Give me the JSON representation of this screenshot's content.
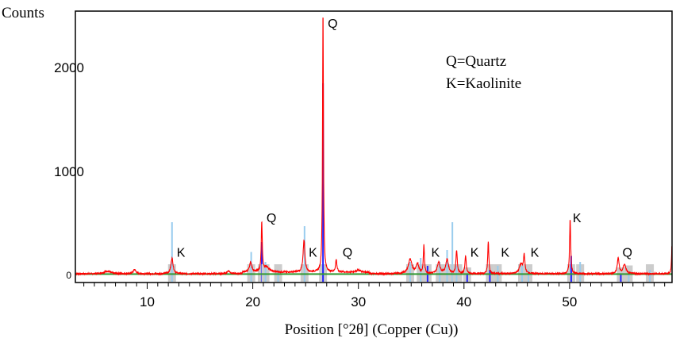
{
  "chart_data": {
    "type": "line",
    "title": "",
    "xlabel": "Position [°2θ] (Copper (Cu))",
    "ylabel": "Counts",
    "xlim": [
      3.2,
      59.7
    ],
    "ylim": [
      0,
      2540
    ],
    "x_ticks": [
      10,
      20,
      30,
      40,
      50
    ],
    "x_tick_labels": [
      "10",
      "20",
      "30",
      "40",
      "50"
    ],
    "y_ticks": [
      0,
      1000,
      2000
    ],
    "y_tick_labels": [
      "0",
      "1000",
      "2000"
    ],
    "grid": false,
    "legend": {
      "placement": "top-right",
      "entries": [
        "Q=Quartz",
        "K=Kaolinite"
      ]
    },
    "series": [
      {
        "name": "Observed pattern",
        "color": "#ff0000",
        "background_counts": 15,
        "peaks": [
          {
            "x": 6.2,
            "height": 25,
            "width": 0.8
          },
          {
            "x": 8.8,
            "height": 40,
            "width": 0.3
          },
          {
            "x": 12.35,
            "height": 150,
            "width": 0.25
          },
          {
            "x": 17.7,
            "height": 30,
            "width": 0.3
          },
          {
            "x": 19.8,
            "height": 95,
            "width": 0.25
          },
          {
            "x": 20.85,
            "height": 470,
            "width": 0.12
          },
          {
            "x": 21.3,
            "height": 50,
            "width": 0.6
          },
          {
            "x": 24.85,
            "height": 310,
            "width": 0.2
          },
          {
            "x": 26.65,
            "height": 2540,
            "width": 0.1
          },
          {
            "x": 27.9,
            "height": 120,
            "width": 0.15
          },
          {
            "x": 30.0,
            "height": 20,
            "width": 0.5
          },
          {
            "x": 34.9,
            "height": 140,
            "width": 0.4
          },
          {
            "x": 35.6,
            "height": 90,
            "width": 0.3
          },
          {
            "x": 36.2,
            "height": 270,
            "width": 0.12
          },
          {
            "x": 37.6,
            "height": 110,
            "width": 0.3
          },
          {
            "x": 38.4,
            "height": 135,
            "width": 0.3
          },
          {
            "x": 39.3,
            "height": 220,
            "width": 0.15
          },
          {
            "x": 40.15,
            "height": 165,
            "width": 0.15
          },
          {
            "x": 42.3,
            "height": 310,
            "width": 0.12
          },
          {
            "x": 45.4,
            "height": 90,
            "width": 0.4
          },
          {
            "x": 45.7,
            "height": 170,
            "width": 0.15
          },
          {
            "x": 50.05,
            "height": 530,
            "width": 0.12
          },
          {
            "x": 54.6,
            "height": 150,
            "width": 0.2
          },
          {
            "x": 55.2,
            "height": 90,
            "width": 0.3
          },
          {
            "x": 59.7,
            "height": 300,
            "width": 0.1
          }
        ]
      },
      {
        "name": "Background",
        "color": "#339933",
        "value": 12
      }
    ],
    "reference_sticks": [
      {
        "name": "Quartz",
        "color": "#2222ff",
        "positions": [
          20.85,
          26.65,
          36.55,
          39.45,
          40.3,
          42.45,
          45.8,
          50.15,
          54.85
        ],
        "heights": [
          20,
          100,
          8,
          8,
          4,
          6,
          4,
          13,
          4
        ]
      },
      {
        "name": "Kaolinite",
        "color": "#99ccee",
        "positions": [
          12.35,
          19.85,
          21.2,
          22.4,
          24.9,
          34.9,
          35.9,
          37.7,
          38.4,
          38.9,
          39.3,
          43.2,
          45.5,
          46.1,
          51.0,
          55.6,
          57.6
        ],
        "heights": [
          30,
          15,
          10,
          6,
          28,
          10,
          12,
          10,
          16,
          30,
          8,
          8,
          8,
          6,
          10,
          5,
          6
        ]
      }
    ],
    "annotations": [
      {
        "text": "Q",
        "x": 27.1,
        "y": 2380
      },
      {
        "text": "Q",
        "x": 21.3,
        "y": 510
      },
      {
        "text": "K",
        "x": 12.8,
        "y": 180
      },
      {
        "text": "K",
        "x": 25.3,
        "y": 180
      },
      {
        "text": "Q",
        "x": 28.5,
        "y": 180
      },
      {
        "text": "K",
        "x": 36.9,
        "y": 180
      },
      {
        "text": "K",
        "x": 40.6,
        "y": 180
      },
      {
        "text": "K",
        "x": 43.5,
        "y": 180
      },
      {
        "text": "K",
        "x": 46.3,
        "y": 180
      },
      {
        "text": "K",
        "x": 50.3,
        "y": 510
      },
      {
        "text": "Q",
        "x": 55.0,
        "y": 180
      }
    ]
  }
}
